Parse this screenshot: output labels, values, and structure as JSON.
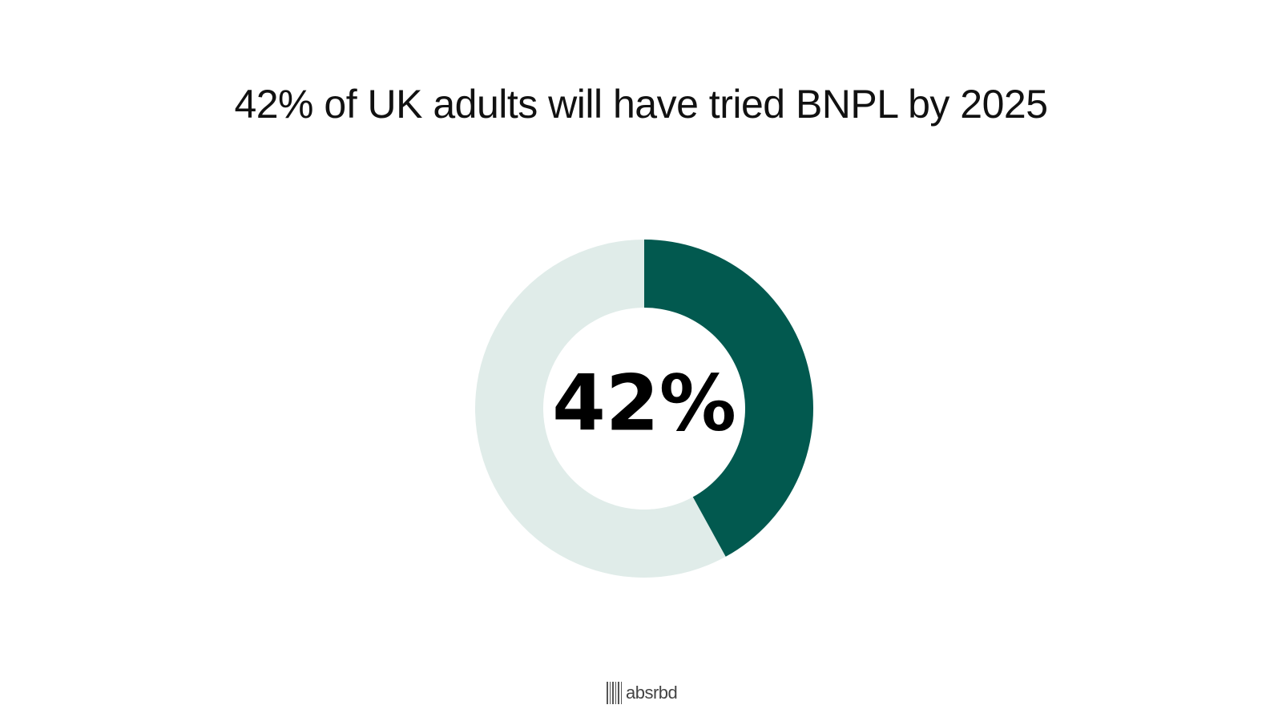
{
  "chart_data": {
    "type": "pie",
    "title": "42% of UK adults will have tried BNPL by 2025",
    "slices": [
      {
        "value": 42
      },
      {
        "value": 58
      }
    ],
    "center_label": "42%",
    "colors": {
      "highlight": "#02594f",
      "remainder": "#e0ece9"
    }
  },
  "logo": {
    "text": "absrbd"
  }
}
